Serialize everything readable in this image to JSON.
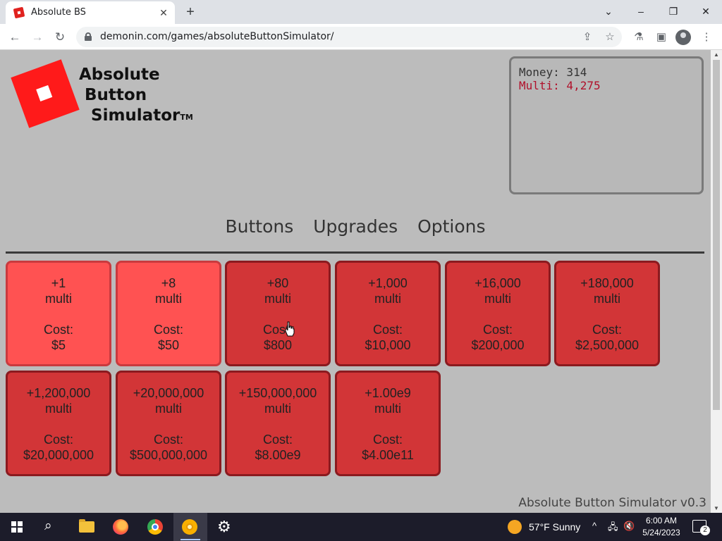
{
  "browser": {
    "tab_title": "Absolute BS",
    "tab_close": "✕",
    "new_tab": "+",
    "url": "demonin.com/games/absoluteButtonSimulator/",
    "window": {
      "minimize": "–",
      "restore": "❐",
      "close": "✕",
      "tablist": "⌄"
    }
  },
  "game": {
    "logo": {
      "line1": "Absolute",
      "line2": "Button",
      "line3": "Simulator",
      "tm": "TM"
    },
    "stats": {
      "money": "Money: 314",
      "multi": "Multi: 4,275"
    },
    "nav_tabs": [
      "Buttons",
      "Upgrades",
      "Options"
    ],
    "buttons": [
      {
        "amount": "+1",
        "unit": "multi",
        "cost_label": "Cost:",
        "cost": "$5",
        "affordable": true
      },
      {
        "amount": "+8",
        "unit": "multi",
        "cost_label": "Cost:",
        "cost": "$50",
        "affordable": true
      },
      {
        "amount": "+80",
        "unit": "multi",
        "cost_label": "Cost:",
        "cost": "$800",
        "affordable": false
      },
      {
        "amount": "+1,000",
        "unit": "multi",
        "cost_label": "Cost:",
        "cost": "$10,000",
        "affordable": false
      },
      {
        "amount": "+16,000",
        "unit": "multi",
        "cost_label": "Cost:",
        "cost": "$200,000",
        "affordable": false
      },
      {
        "amount": "+180,000",
        "unit": "multi",
        "cost_label": "Cost:",
        "cost": "$2,500,000",
        "affordable": false
      },
      {
        "amount": "+1,200,000",
        "unit": "multi",
        "cost_label": "Cost:",
        "cost": "$20,000,000",
        "affordable": false
      },
      {
        "amount": "+20,000,000",
        "unit": "multi",
        "cost_label": "Cost:",
        "cost": "$500,000,000",
        "affordable": false
      },
      {
        "amount": "+150,000,000",
        "unit": "multi",
        "cost_label": "Cost:",
        "cost": "$8.00e9",
        "affordable": false
      },
      {
        "amount": "+1.00e9",
        "unit": "multi",
        "cost_label": "Cost:",
        "cost": "$4.00e11",
        "affordable": false
      }
    ],
    "version": "Absolute Button Simulator v0.3"
  },
  "taskbar": {
    "weather": "57°F  Sunny",
    "time": "6:00 AM",
    "date": "5/24/2023",
    "notification_count": "2"
  },
  "colors": {
    "affordable_button": "#ff5252",
    "locked_button": "#d23537",
    "multi_text": "#b0102a"
  }
}
